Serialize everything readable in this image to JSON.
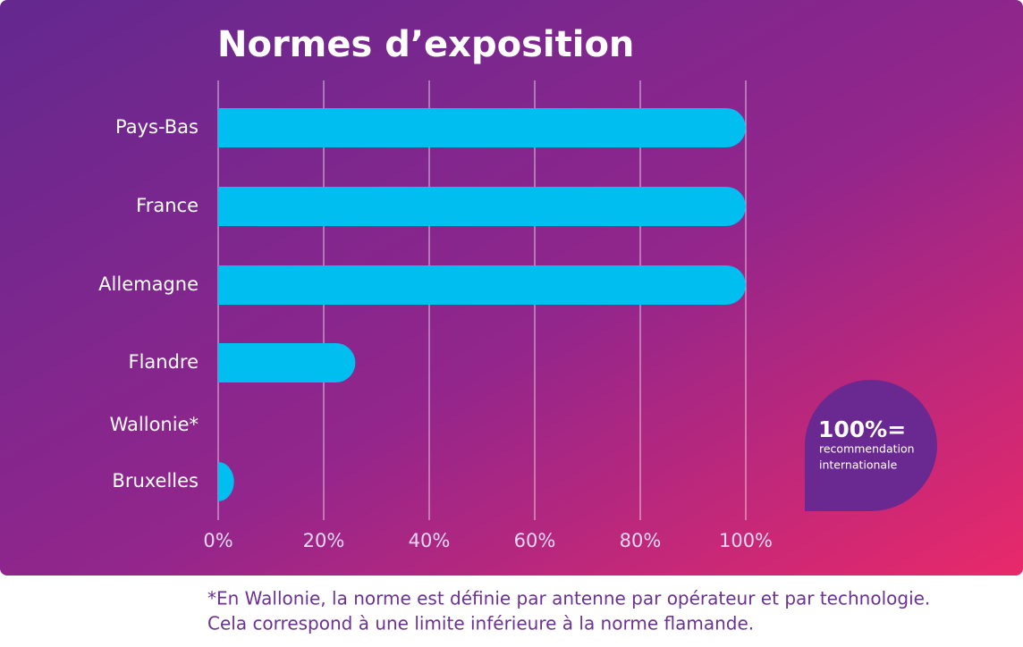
{
  "chart_data": {
    "type": "barh",
    "title": "Normes d’exposition",
    "categories": [
      "Pays-Bas",
      "France",
      "Allemagne",
      "Flandre",
      "Wallonie*",
      "Bruxelles"
    ],
    "values": [
      100,
      100,
      100,
      26,
      null,
      3
    ],
    "color": "#00bff0",
    "xlim": [
      0,
      100
    ],
    "xticks": [
      {
        "value": 0,
        "label": "0%"
      },
      {
        "value": 20,
        "label": "20%"
      },
      {
        "value": 40,
        "label": "40%"
      },
      {
        "value": 60,
        "label": "60%"
      },
      {
        "value": 80,
        "label": "80%"
      },
      {
        "value": 100,
        "label": "100%"
      }
    ],
    "grid": true,
    "annotations": [
      "100%=",
      "recommendation",
      "internationale"
    ],
    "note": [
      "*En Wallonie, la norme est définie par antenne par opérateur et par technologie.",
      "Cela correspond à une limite inférieure à la norme flamande."
    ]
  }
}
